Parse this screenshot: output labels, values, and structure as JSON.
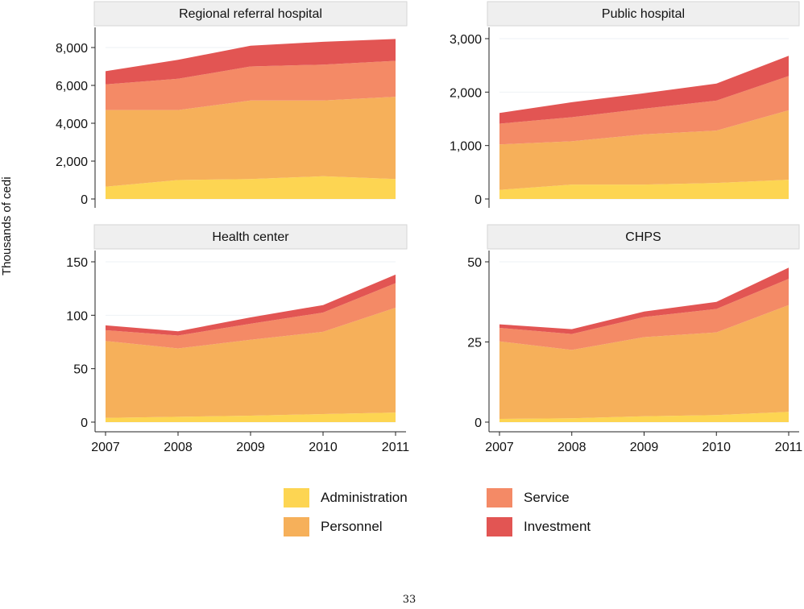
{
  "y_axis_title": "Thousands of cedi",
  "page_number": "33",
  "colors": {
    "Administration": "#fdd552",
    "Personnel": "#f6b05a",
    "Service": "#f48a66",
    "Investment": "#e25553",
    "panel_header_bg": "#efefef",
    "gridline": "#eef2f4"
  },
  "legend": [
    {
      "name": "Administration",
      "color": "#fdd552"
    },
    {
      "name": "Service",
      "color": "#f48a66"
    },
    {
      "name": "Personnel",
      "color": "#f6b05a"
    },
    {
      "name": "Investment",
      "color": "#e25553"
    }
  ],
  "chart_data": [
    {
      "type": "area",
      "stacked": true,
      "title": "Regional referral hospital",
      "ylabel": "Thousands of cedi",
      "x": [
        2007,
        2008,
        2009,
        2010,
        2011
      ],
      "ylim": [
        0,
        8800
      ],
      "yticks": [
        0,
        2000,
        4000,
        6000,
        8000
      ],
      "ytick_labels": [
        "0",
        "2,000",
        "4,000",
        "6,000",
        "8,000"
      ],
      "xtick_labels": [],
      "series": [
        {
          "name": "Administration",
          "values": [
            650,
            1000,
            1050,
            1200,
            1050
          ]
        },
        {
          "name": "Personnel",
          "values": [
            4050,
            3700,
            4150,
            4000,
            4350
          ]
        },
        {
          "name": "Service",
          "values": [
            1350,
            1650,
            1800,
            1900,
            1900
          ]
        },
        {
          "name": "Investment",
          "values": [
            700,
            1000,
            1100,
            1200,
            1150
          ]
        }
      ]
    },
    {
      "type": "area",
      "stacked": true,
      "title": "Public hospital",
      "ylabel": "Thousands of cedi",
      "x": [
        2007,
        2008,
        2009,
        2010,
        2011
      ],
      "ylim": [
        0,
        3000
      ],
      "yticks": [
        0,
        1000,
        2000,
        3000
      ],
      "ytick_labels": [
        "0",
        "1,000",
        "2,000",
        "3,000"
      ],
      "xtick_labels": [],
      "series": [
        {
          "name": "Administration",
          "values": [
            170,
            270,
            270,
            300,
            360
          ]
        },
        {
          "name": "Personnel",
          "values": [
            850,
            810,
            940,
            980,
            1300
          ]
        },
        {
          "name": "Service",
          "values": [
            390,
            450,
            480,
            560,
            640
          ]
        },
        {
          "name": "Investment",
          "values": [
            200,
            280,
            290,
            320,
            380
          ]
        }
      ]
    },
    {
      "type": "area",
      "stacked": true,
      "title": "Health center",
      "ylabel": "Thousands of cedi",
      "x": [
        2007,
        2008,
        2009,
        2010,
        2011
      ],
      "ylim": [
        0,
        160
      ],
      "yticks": [
        0,
        50,
        100,
        150
      ],
      "ytick_labels": [
        "0",
        "50",
        "100",
        "150"
      ],
      "xtick_labels": [
        "2007",
        "2008",
        "2009",
        "2010",
        "2011"
      ],
      "series": [
        {
          "name": "Administration",
          "values": [
            4,
            5,
            6,
            7.5,
            9
          ]
        },
        {
          "name": "Personnel",
          "values": [
            72,
            64,
            71,
            77,
            98
          ]
        },
        {
          "name": "Service",
          "values": [
            10,
            12,
            15,
            18,
            23
          ]
        },
        {
          "name": "Investment",
          "values": [
            4.5,
            4,
            6,
            7,
            8
          ]
        }
      ]
    },
    {
      "type": "area",
      "stacked": true,
      "title": "CHPS",
      "ylabel": "Thousands of cedi",
      "x": [
        2007,
        2008,
        2009,
        2010,
        2011
      ],
      "ylim": [
        0,
        53
      ],
      "yticks": [
        0,
        25,
        50
      ],
      "ytick_labels": [
        "0",
        "25",
        "50"
      ],
      "xtick_labels": [
        "2007",
        "2008",
        "2009",
        "2010",
        "2011"
      ],
      "series": [
        {
          "name": "Administration",
          "values": [
            1,
            1.2,
            1.8,
            2.2,
            3.2
          ]
        },
        {
          "name": "Personnel",
          "values": [
            24.2,
            21.3,
            24.7,
            25.8,
            33.3
          ]
        },
        {
          "name": "Service",
          "values": [
            4.2,
            5,
            6.3,
            7.3,
            8.2
          ]
        },
        {
          "name": "Investment",
          "values": [
            1.1,
            1.5,
            1.7,
            2.2,
            3.5
          ]
        }
      ]
    }
  ]
}
